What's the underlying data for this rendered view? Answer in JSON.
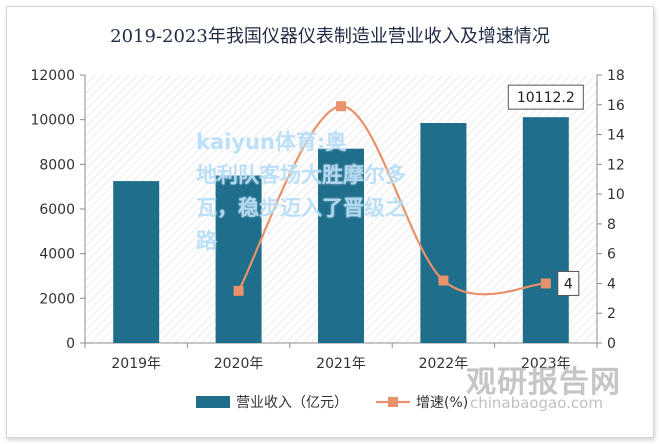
{
  "chart_data": {
    "type": "bar",
    "title": "2019-2023年我国仪器仪表制造业营业收入及增速情况",
    "categories": [
      "2019年",
      "2020年",
      "2021年",
      "2022年",
      "2023年"
    ],
    "series": [
      {
        "name": "营业收入（亿元）",
        "type": "bar",
        "axis": "left",
        "color": "#1f6e8c",
        "values": [
          7250,
          7500,
          8700,
          9850,
          10112.2
        ]
      },
      {
        "name": "增速(%)",
        "type": "line",
        "axis": "right",
        "color": "#e8916a",
        "values": [
          null,
          3.5,
          15.9,
          4.2,
          4
        ]
      }
    ],
    "y_left": {
      "min": 0,
      "max": 12000,
      "step": 2000
    },
    "y_right": {
      "min": 0,
      "max": 18,
      "step": 2
    },
    "annotations": [
      {
        "series": 0,
        "index": 4,
        "text": "10112.2"
      },
      {
        "series": 1,
        "index": 4,
        "text": "4"
      }
    ],
    "legend_position": "bottom",
    "grid": false
  },
  "overlay": {
    "line1": "kaiyun体育:奥",
    "line2": "地利队客场大胜摩尔多",
    "line3": "瓦，稳步迈入了晋级之",
    "line4": "路"
  },
  "watermark": {
    "logo_text": "观研报告网",
    "url": "chinabaogao.com"
  }
}
